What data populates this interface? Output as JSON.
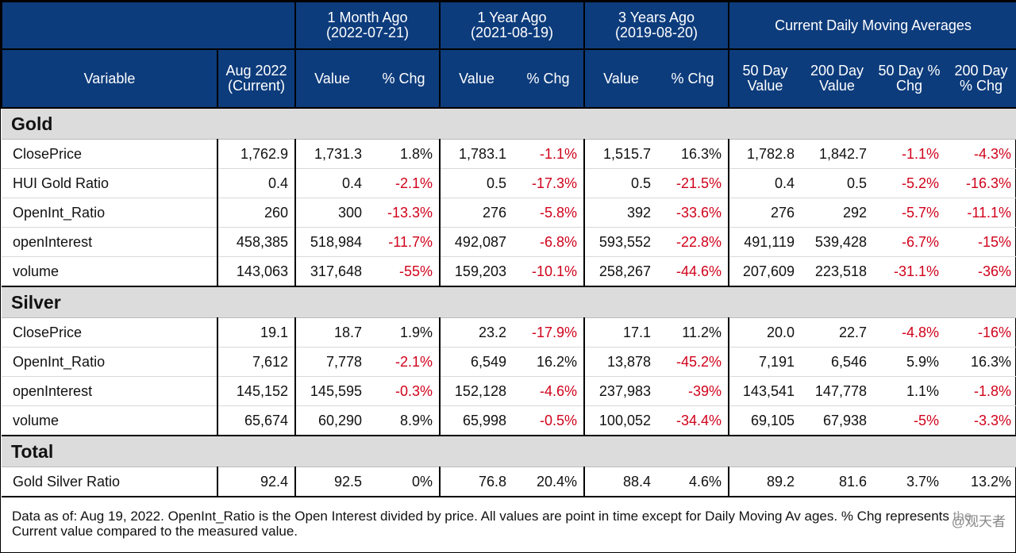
{
  "header": {
    "variable": "Variable",
    "current": "Aug 2022 (Current)",
    "groups": [
      {
        "label": "1 Month Ago",
        "date": "(2022-07-21)"
      },
      {
        "label": "1 Year Ago",
        "date": "(2021-08-19)"
      },
      {
        "label": "3 Years Ago",
        "date": "(2019-08-20)"
      }
    ],
    "ma_group": "Current Daily Moving Averages",
    "value": "Value",
    "pct": "% Chg",
    "ma_cols": [
      "50 Day Value",
      "200 Day Value",
      "50 Day % Chg",
      "200 Day % Chg"
    ]
  },
  "sections": [
    {
      "name": "Gold",
      "rows": [
        {
          "var": "ClosePrice",
          "cells": [
            "1,762.9",
            "1,731.3",
            "1.8%",
            "1,783.1",
            "-1.1%",
            "1,515.7",
            "16.3%",
            "1,782.8",
            "1,842.7",
            "-1.1%",
            "-4.3%"
          ]
        },
        {
          "var": "HUI Gold Ratio",
          "cells": [
            "0.4",
            "0.4",
            "-2.1%",
            "0.5",
            "-17.3%",
            "0.5",
            "-21.5%",
            "0.4",
            "0.5",
            "-5.2%",
            "-16.3%"
          ]
        },
        {
          "var": "OpenInt_Ratio",
          "cells": [
            "260",
            "300",
            "-13.3%",
            "276",
            "-5.8%",
            "392",
            "-33.6%",
            "276",
            "292",
            "-5.7%",
            "-11.1%"
          ]
        },
        {
          "var": "openInterest",
          "cells": [
            "458,385",
            "518,984",
            "-11.7%",
            "492,087",
            "-6.8%",
            "593,552",
            "-22.8%",
            "491,119",
            "539,428",
            "-6.7%",
            "-15%"
          ]
        },
        {
          "var": "volume",
          "cells": [
            "143,063",
            "317,648",
            "-55%",
            "159,203",
            "-10.1%",
            "258,267",
            "-44.6%",
            "207,609",
            "223,518",
            "-31.1%",
            "-36%"
          ]
        }
      ]
    },
    {
      "name": "Silver",
      "rows": [
        {
          "var": "ClosePrice",
          "cells": [
            "19.1",
            "18.7",
            "1.9%",
            "23.2",
            "-17.9%",
            "17.1",
            "11.2%",
            "20.0",
            "22.7",
            "-4.8%",
            "-16%"
          ]
        },
        {
          "var": "OpenInt_Ratio",
          "cells": [
            "7,612",
            "7,778",
            "-2.1%",
            "6,549",
            "16.2%",
            "13,878",
            "-45.2%",
            "7,191",
            "6,546",
            "5.9%",
            "16.3%"
          ]
        },
        {
          "var": "openInterest",
          "cells": [
            "145,152",
            "145,595",
            "-0.3%",
            "152,128",
            "-4.6%",
            "237,983",
            "-39%",
            "143,541",
            "147,778",
            "1.1%",
            "-1.8%"
          ]
        },
        {
          "var": "volume",
          "cells": [
            "65,674",
            "60,290",
            "8.9%",
            "65,998",
            "-0.5%",
            "100,052",
            "-34.4%",
            "69,105",
            "67,938",
            "-5%",
            "-3.3%"
          ]
        }
      ]
    },
    {
      "name": "Total",
      "rows": [
        {
          "var": "Gold Silver Ratio",
          "cells": [
            "92.4",
            "92.5",
            "0%",
            "76.8",
            "20.4%",
            "88.4",
            "4.6%",
            "89.2",
            "81.6",
            "3.7%",
            "13.2%"
          ]
        }
      ]
    }
  ],
  "footnote": "Data as of: Aug 19, 2022. OpenInt_Ratio is the Open Interest divided by price. All values are point in time except for Daily Moving Av      ages. % Chg represents the Current value compared to the measured value.",
  "watermark": "@观天者",
  "colors": {
    "header_bg": "#0d3c7c",
    "negative": "#d0021b",
    "section_bg": "#dcdcdc"
  }
}
